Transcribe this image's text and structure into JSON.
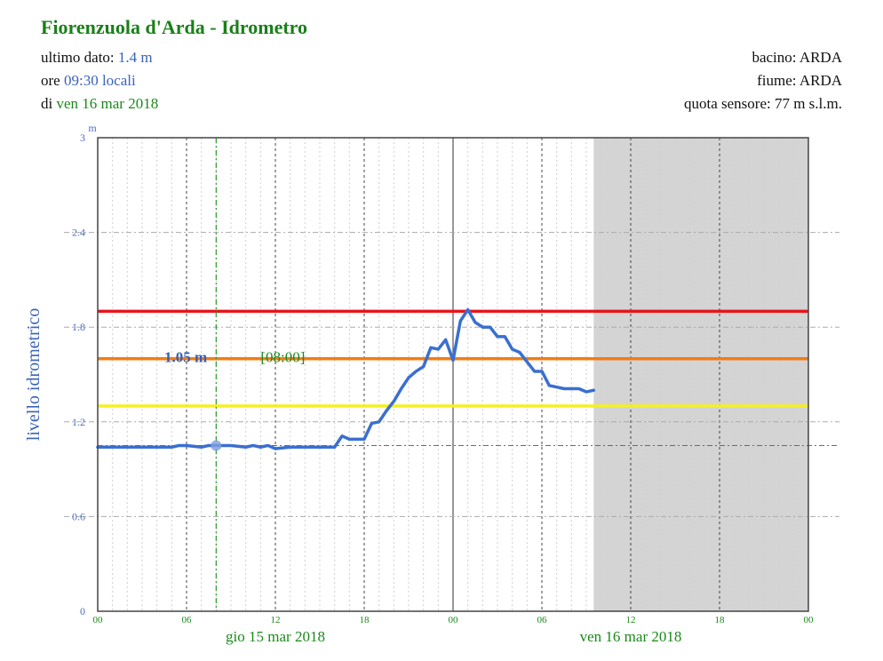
{
  "header": {
    "title": "Fiorenzuola d'Arda - Idrometro",
    "last_label": "ultimo dato: ",
    "last_value": "1.4 m",
    "time_label": "ore ",
    "time_value": "09:30 locali",
    "date_label": "di ",
    "date_value": "ven 16 mar 2018",
    "basin": "bacino: ARDA",
    "river": "fiume: ARDA",
    "sensor": "quota sensore: 77 m s.l.m."
  },
  "colors": {
    "series": "#3a6fd0",
    "threshold_red": "#e8141c",
    "threshold_orange": "#f07d16",
    "threshold_yellow": "#f5f01e",
    "future_shade": "#d4d4d4",
    "cursor": "#2a9a2a",
    "axis_text": "#4a6fc0",
    "day_text": "#1a8a1a"
  },
  "chart_data": {
    "type": "line",
    "title": "",
    "ylabel": "livello idrometrico",
    "yunit": "m",
    "ylim": [
      0,
      3
    ],
    "yticks": [
      "0",
      "0.6",
      "1.2",
      "1.8",
      "2.4",
      "3"
    ],
    "x_range_hours": [
      0,
      48
    ],
    "xticks": [
      "00",
      "06",
      "12",
      "18",
      "00",
      "06",
      "12",
      "18",
      "00"
    ],
    "day_labels": [
      "gio 15 mar 2018",
      "ven 16 mar 2018"
    ],
    "thresholds": [
      {
        "color": "red",
        "value": 1.9
      },
      {
        "color": "orange",
        "value": 1.6
      },
      {
        "color": "yellow",
        "value": 1.3
      }
    ],
    "reference_level": 1.05,
    "cursor": {
      "hour": 8,
      "value": 1.05,
      "value_label": "1.05 m",
      "time_label": "[08:00]"
    },
    "future_from_hour": 33.5,
    "grid": true,
    "series": [
      {
        "x": [
          0,
          1,
          2,
          3,
          4,
          5,
          5.5,
          6,
          7,
          7.5,
          8,
          9,
          10,
          10.5,
          11,
          11.5,
          12,
          13,
          14,
          15,
          16,
          16.5,
          17,
          17.5,
          18,
          18.5,
          19,
          19.5,
          20,
          20.5,
          21,
          21.5,
          22,
          22.5,
          23,
          23.5,
          24,
          24.5,
          25,
          25.5,
          26,
          26.5,
          27,
          27.5,
          28,
          28.5,
          29,
          29.5,
          30,
          30.5,
          31,
          31.5,
          32,
          32.5,
          33,
          33.5
        ],
        "y": [
          1.04,
          1.04,
          1.04,
          1.04,
          1.04,
          1.04,
          1.05,
          1.05,
          1.04,
          1.05,
          1.05,
          1.05,
          1.04,
          1.05,
          1.04,
          1.05,
          1.03,
          1.04,
          1.04,
          1.04,
          1.04,
          1.11,
          1.09,
          1.09,
          1.09,
          1.19,
          1.2,
          1.27,
          1.33,
          1.41,
          1.48,
          1.52,
          1.55,
          1.67,
          1.66,
          1.72,
          1.59,
          1.84,
          1.91,
          1.83,
          1.8,
          1.8,
          1.74,
          1.74,
          1.66,
          1.64,
          1.58,
          1.52,
          1.52,
          1.43,
          1.42,
          1.41,
          1.41,
          1.41,
          1.39,
          1.4
        ]
      }
    ]
  }
}
